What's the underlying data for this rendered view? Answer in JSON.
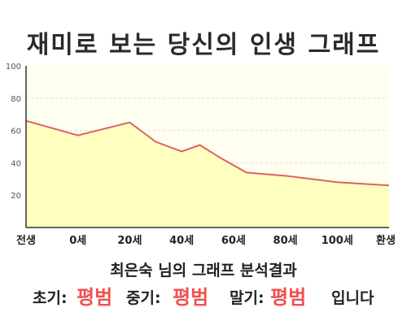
{
  "page": {
    "title": "재미로 보는 당신의 인생 그래프"
  },
  "colors": {
    "plot_bg": "#fffff0",
    "area_fill": "#ffffc0",
    "line": "#e06060",
    "axis": "#333333",
    "grid": "#dddddd",
    "highlight": "#f05050"
  },
  "chart_data": {
    "type": "area",
    "title": "재미로 보는 당신의 인생 그래프",
    "xlabel": "",
    "ylabel": "",
    "ylim": [
      0,
      100
    ],
    "y_ticks": [
      20,
      40,
      60,
      80,
      100
    ],
    "grid": true,
    "x_tick_labels": [
      "전생",
      "0세",
      "20세",
      "40세",
      "60세",
      "80세",
      "100세",
      "환생"
    ],
    "x_tick_positions": [
      -20,
      0,
      20,
      40,
      60,
      80,
      100,
      120
    ],
    "xlim": [
      -20,
      120
    ],
    "series": [
      {
        "x": [
          -20,
          0,
          20,
          30,
          40,
          47,
          55,
          65,
          80,
          100,
          120
        ],
        "values": [
          66,
          57,
          65,
          53,
          47,
          51,
          43,
          34,
          32,
          28,
          26
        ]
      }
    ]
  },
  "summary": {
    "text": "최은숙 님의 그래프 분석결과",
    "early_label": "초기:",
    "early_value": "평범",
    "mid_label": "중기:",
    "mid_value": "평범",
    "late_label": "말기:",
    "late_value": "평범",
    "suffix": "입니다"
  }
}
